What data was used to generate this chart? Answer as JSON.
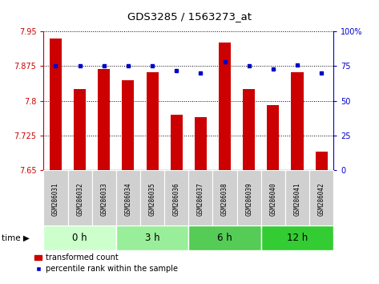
{
  "title": "GDS3285 / 1563273_at",
  "samples": [
    "GSM286031",
    "GSM286032",
    "GSM286033",
    "GSM286034",
    "GSM286035",
    "GSM286036",
    "GSM286037",
    "GSM286038",
    "GSM286039",
    "GSM286040",
    "GSM286041",
    "GSM286042"
  ],
  "bar_values": [
    7.934,
    7.825,
    7.868,
    7.845,
    7.862,
    7.77,
    7.765,
    7.925,
    7.825,
    7.79,
    7.862,
    7.69
  ],
  "percentile_values": [
    75,
    75,
    75,
    75,
    75,
    72,
    70,
    78,
    75,
    73,
    76,
    70
  ],
  "bar_color": "#cc0000",
  "dot_color": "#0000cc",
  "ylim_left": [
    7.65,
    7.95
  ],
  "ylim_right": [
    0,
    100
  ],
  "yticks_left": [
    7.65,
    7.725,
    7.8,
    7.875,
    7.95
  ],
  "yticks_right": [
    0,
    25,
    50,
    75,
    100
  ],
  "groups": [
    {
      "label": "0 h",
      "start": 0,
      "end": 2,
      "color": "#ccffcc"
    },
    {
      "label": "3 h",
      "start": 3,
      "end": 5,
      "color": "#99ee99"
    },
    {
      "label": "6 h",
      "start": 6,
      "end": 8,
      "color": "#55cc55"
    },
    {
      "label": "12 h",
      "start": 9,
      "end": 11,
      "color": "#33cc33"
    }
  ],
  "time_label": "time",
  "legend_bar_label": "transformed count",
  "legend_dot_label": "percentile rank within the sample",
  "background_color": "#ffffff",
  "sample_box_color": "#d0d0d0",
  "bar_width": 0.5
}
